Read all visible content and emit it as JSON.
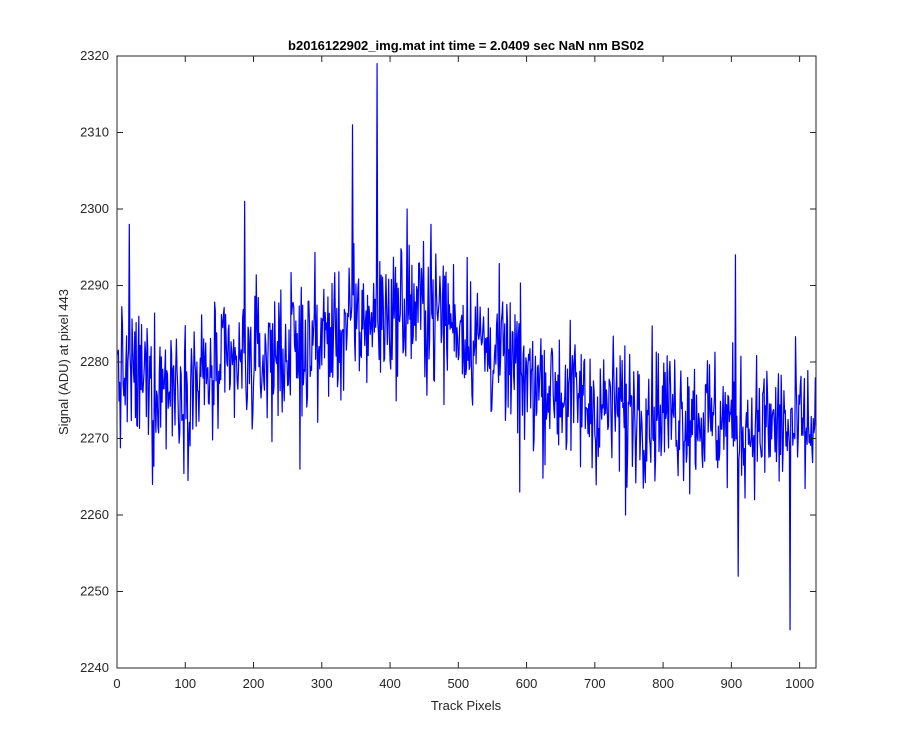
{
  "chart_data": {
    "type": "line",
    "title": "b2016122902_img.mat int time = 2.0409 sec  NaN nm BS02",
    "xlabel": "Track Pixels",
    "ylabel": "Signal (ADU) at pixel 443",
    "xlim": [
      0,
      1024
    ],
    "ylim": [
      2240,
      2320
    ],
    "xticks": [
      0,
      100,
      200,
      300,
      400,
      500,
      600,
      700,
      800,
      900,
      1000
    ],
    "yticks": [
      2240,
      2250,
      2260,
      2270,
      2280,
      2290,
      2300,
      2310,
      2320
    ],
    "grid": false,
    "legend": "none",
    "series": [
      {
        "color": "#0000ff",
        "x_step": 1,
        "x_start": 1,
        "trend": [
          [
            1,
            2278
          ],
          [
            100,
            2277
          ],
          [
            200,
            2280
          ],
          [
            300,
            2283
          ],
          [
            380,
            2286
          ],
          [
            450,
            2287
          ],
          [
            500,
            2285
          ],
          [
            600,
            2278
          ],
          [
            700,
            2274
          ],
          [
            800,
            2274
          ],
          [
            900,
            2272
          ],
          [
            1024,
            2271
          ]
        ],
        "noise_amplitude": 6,
        "peaks": [
          [
            18,
            2298
          ],
          [
            52,
            2264
          ],
          [
            187,
            2301
          ],
          [
            268,
            2266
          ],
          [
            345,
            2311
          ],
          [
            381,
            2319
          ],
          [
            425,
            2300
          ],
          [
            460,
            2298
          ],
          [
            590,
            2263
          ],
          [
            745,
            2260
          ],
          [
            906,
            2294
          ],
          [
            910,
            2252
          ],
          [
            986,
            2245
          ]
        ]
      }
    ]
  }
}
